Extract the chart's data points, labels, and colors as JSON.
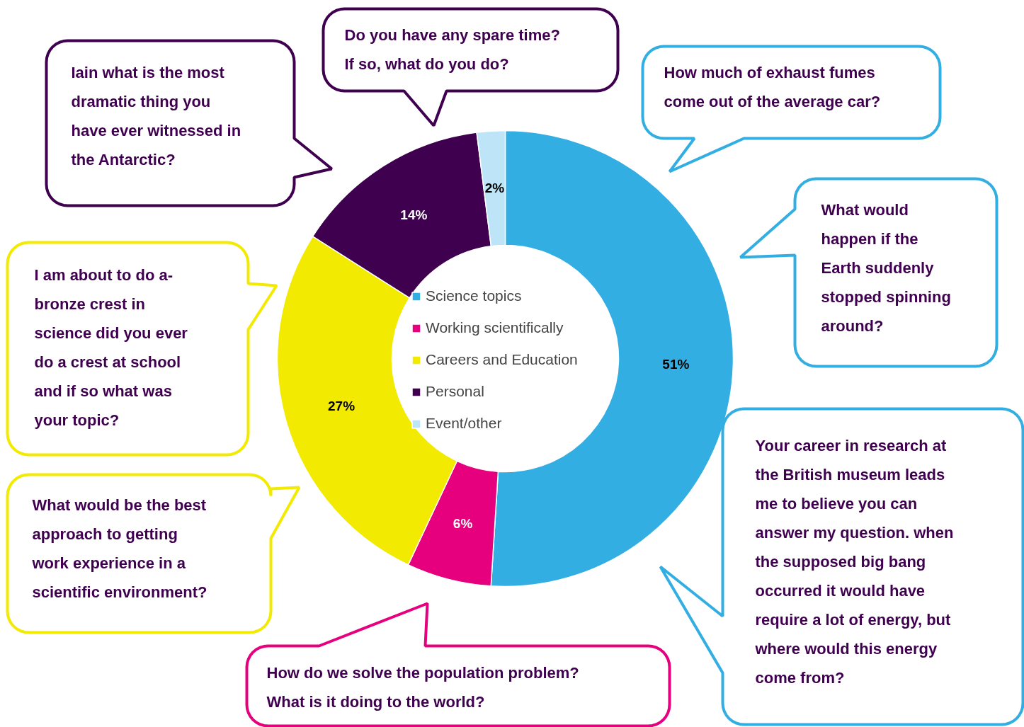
{
  "chart_data": {
    "type": "donut",
    "categories": [
      "Science topics",
      "Working scientifically",
      "Careers and Education",
      "Personal",
      "Event/other"
    ],
    "values": [
      51,
      6,
      27,
      14,
      2
    ],
    "colors": [
      "#33aee3",
      "#e6007e",
      "#f2ea00",
      "#3f004f",
      "#bde4f7"
    ],
    "value_labels": [
      "51%",
      "6%",
      "27%",
      "14%",
      "2%"
    ],
    "legend": "center",
    "annotations": [
      "Iain what is the most\ndramatic thing you\nhave ever witnessed in\nthe Antarctic?",
      "Do you have any spare time?\nIf so, what do you do?",
      "How much of exhaust fumes\ncome out of the average car?",
      "What would\nhappen if the\nEarth suddenly\nstopped spinning\naround?",
      "Your career in research at\nthe British museum leads\nme to believe you can\nanswer my question. when\nthe supposed big bang\noccurred it would have\nrequire a lot of energy, but\nwhere would this energy\ncome from?",
      "How do we solve the population problem?\nWhat is it doing to the world?",
      "What would be the best\napproach to getting\nwork experience in a\nscientific environment?",
      "I am about to do a-\nbronze crest in\nscience did you ever\ndo a crest at school\nand if so what was\nyour topic?"
    ]
  }
}
